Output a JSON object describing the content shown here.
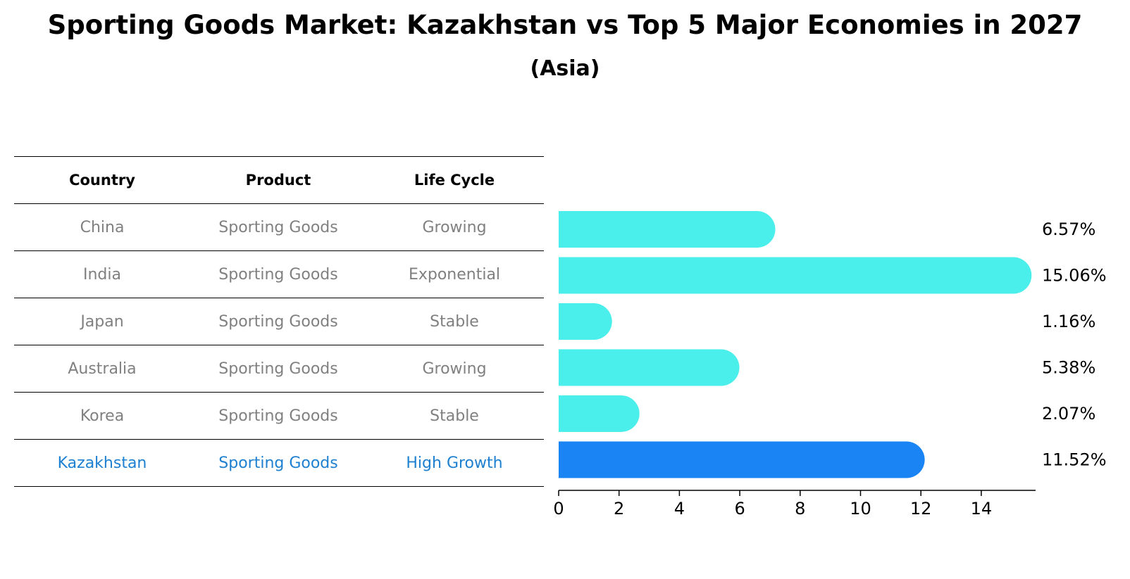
{
  "title": "Sporting Goods Market: Kazakhstan vs Top 5 Major Economies in 2027",
  "subtitle": "(Asia)",
  "table": {
    "headers": [
      "Country",
      "Product",
      "Life Cycle"
    ],
    "rows": [
      {
        "country": "China",
        "product": "Sporting Goods",
        "life_cycle": "Growing",
        "highlight": false
      },
      {
        "country": "India",
        "product": "Sporting Goods",
        "life_cycle": "Exponential",
        "highlight": false
      },
      {
        "country": "Japan",
        "product": "Sporting Goods",
        "life_cycle": "Stable",
        "highlight": false
      },
      {
        "country": "Australia",
        "product": "Sporting Goods",
        "life_cycle": "Growing",
        "highlight": false
      },
      {
        "country": "Korea",
        "product": "Sporting Goods",
        "life_cycle": "Stable",
        "highlight": false
      },
      {
        "country": "Kazakhstan",
        "product": "Sporting Goods",
        "life_cycle": "High Growth",
        "highlight": true
      }
    ]
  },
  "chart_data": {
    "type": "bar",
    "orientation": "horizontal",
    "categories": [
      "China",
      "India",
      "Japan",
      "Australia",
      "Korea",
      "Kazakhstan"
    ],
    "values": [
      6.57,
      15.06,
      1.16,
      5.38,
      2.07,
      11.52
    ],
    "value_labels": [
      "6.57%",
      "15.06%",
      "1.16%",
      "5.38%",
      "2.07%",
      "11.52%"
    ],
    "xlim": [
      0,
      15.8
    ],
    "xticks": [
      0,
      2,
      4,
      6,
      8,
      10,
      12,
      14
    ],
    "xlabel": "",
    "ylabel": "",
    "grid": false,
    "colors": {
      "default": "#4aeeea",
      "highlight": "#1a84f5",
      "highlight_text": "#1e80d0",
      "muted_text": "#808080"
    }
  }
}
